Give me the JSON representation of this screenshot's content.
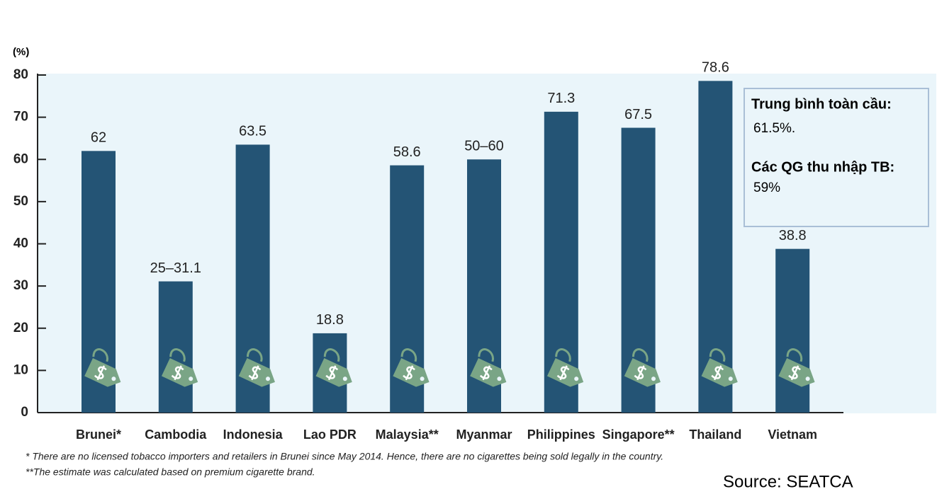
{
  "chart_data": {
    "type": "bar",
    "y_label": "(%)",
    "categories": [
      "Brunei*",
      "Cambodia",
      "Indonesia",
      "Lao PDR",
      "Malaysia**",
      "Myanmar",
      "Philippines",
      "Singapore**",
      "Thailand",
      "Vietnam"
    ],
    "values": [
      62,
      31.1,
      63.5,
      18.8,
      58.6,
      60,
      71.3,
      67.5,
      78.6,
      38.8
    ],
    "value_labels": [
      "62",
      "25–31.1",
      "63.5",
      "18.8",
      "58.6",
      "50–60",
      "71.3",
      "67.5",
      "78.6",
      "38.8"
    ],
    "color": "#245475",
    "ylim": [
      0,
      80
    ],
    "yticks": [
      0,
      10,
      20,
      30,
      40,
      50,
      60,
      70,
      80
    ],
    "annotations": [
      {
        "heading": "Trung bình toàn cầu:",
        "text": "61.5%."
      },
      {
        "heading": "Các QG thu nhập TB:",
        "text": "59%"
      }
    ],
    "footnotes": [
      "* There are no licensed tobacco importers and retailers in Brunei since May 2014. Hence, there are no cigarettes being sold legally in the country.",
      "**The estimate was calculated based on premium cigarette brand."
    ],
    "source": "Source: SEATCA"
  }
}
